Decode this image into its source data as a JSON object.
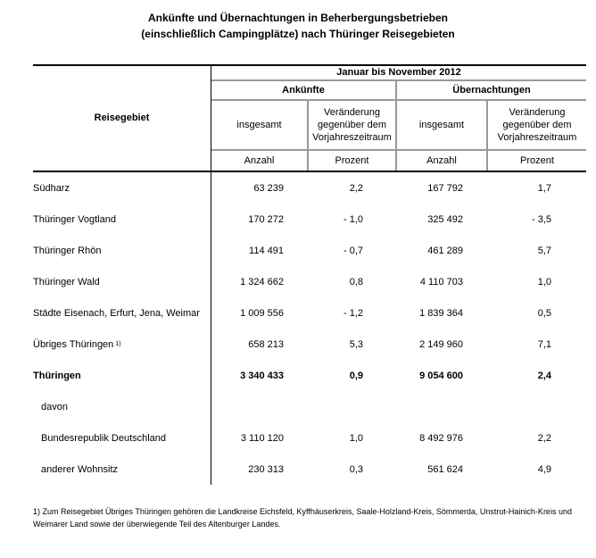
{
  "title": {
    "line1": "Ankünfte und Übernachtungen in Beherbergungsbetrieben",
    "line2": "(einschließlich Campingplätze) nach Thüringer Reisegebieten"
  },
  "colors": {
    "rule_black": "#000000",
    "rule_gray": "#999999"
  },
  "table": {
    "row_header": "Reisegebiet",
    "period": "Januar bis November 2012",
    "groups": [
      {
        "label": "Ankünfte"
      },
      {
        "label": "Übernachtungen"
      }
    ],
    "subheaders": {
      "total": "insgesamt",
      "change": "Veränderung gegenüber dem Vorjahreszeitraum"
    },
    "units": {
      "count": "Anzahl",
      "percent": "Prozent"
    },
    "rows": [
      {
        "label": "Südharz",
        "arrivals_total": "63 239",
        "arrivals_change": "2,2",
        "nights_total": "167 792",
        "nights_change": "1,7"
      },
      {
        "label": "Thüringer Vogtland",
        "arrivals_total": "170 272",
        "arrivals_change": "- 1,0",
        "nights_total": "325 492",
        "nights_change": "- 3,5"
      },
      {
        "label": "Thüringer Rhön",
        "arrivals_total": "114 491",
        "arrivals_change": "- 0,7",
        "nights_total": "461 289",
        "nights_change": "5,7"
      },
      {
        "label": "Thüringer Wald",
        "arrivals_total": "1 324 662",
        "arrivals_change": "0,8",
        "nights_total": "4 110 703",
        "nights_change": "1,0"
      },
      {
        "label": "Städte Eisenach, Erfurt, Jena, Weimar",
        "arrivals_total": "1 009 556",
        "arrivals_change": "- 1,2",
        "nights_total": "1 839 364",
        "nights_change": "0,5"
      },
      {
        "label": "Übriges Thüringen",
        "footnote_mark": "1)",
        "arrivals_total": "658 213",
        "arrivals_change": "5,3",
        "nights_total": "2 149 960",
        "nights_change": "7,1"
      },
      {
        "label": "Thüringen",
        "arrivals_total": "3 340 433",
        "arrivals_change": "0,9",
        "nights_total": "9 054 600",
        "nights_change": "2,4"
      },
      {
        "label": "davon",
        "arrivals_total": "",
        "arrivals_change": "",
        "nights_total": "",
        "nights_change": ""
      },
      {
        "label": "Bundesrepublik Deutschland",
        "arrivals_total": "3 110 120",
        "arrivals_change": "1,0",
        "nights_total": "8 492 976",
        "nights_change": "2,2"
      },
      {
        "label": "anderer Wohnsitz",
        "arrivals_total": "230 313",
        "arrivals_change": "0,3",
        "nights_total": "561 624",
        "nights_change": "4,9"
      }
    ]
  },
  "footnote": {
    "line1": "1) Zum Reisegebiet Übriges Thüringen gehören die Landkreise Eichsfeld, Kyffhäuserkreis, Saale-Holzland-Kreis, Sömmerda, Unstrut-Hainich-Kreis und",
    "line2": "Weimarer Land sowie der überwiegende Teil des Altenburger Landes."
  }
}
